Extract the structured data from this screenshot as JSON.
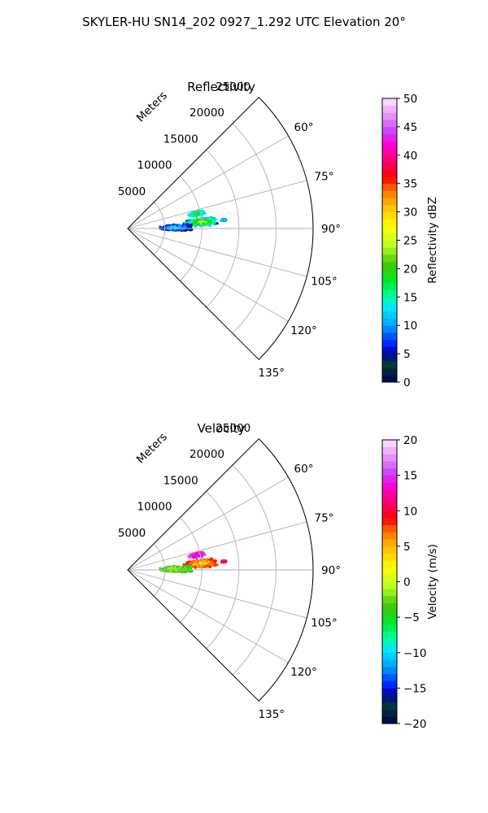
{
  "figure": {
    "title": "SKYLER-HU  SN14_202  0927_1.292 UTC Elevation 20°"
  },
  "chart_data": [
    {
      "type": "heatmap",
      "title": "Reflectivity",
      "radial_label": "Meters",
      "radial_ticks": [
        5000,
        10000,
        15000,
        20000,
        25000
      ],
      "radial_tick_labels": [
        "5000",
        "10000",
        "15000",
        "20000",
        "25000"
      ],
      "r_max": 25000,
      "azimuth_range_deg": [
        45,
        135
      ],
      "azimuth_ticks": [
        60,
        75,
        90,
        105,
        120,
        135
      ],
      "azimuth_tick_labels": [
        "60°",
        "75°",
        "90°",
        "105°",
        "120°",
        "135°"
      ],
      "grid": true,
      "colorbar": {
        "label": "Reflectivity dBZ",
        "vmin": 0,
        "vmax": 50,
        "ticks": [
          0,
          5,
          10,
          15,
          20,
          25,
          30,
          35,
          40,
          45,
          50
        ],
        "tick_labels": [
          "0",
          "5",
          "10",
          "15",
          "20",
          "25",
          "30",
          "35",
          "40",
          "45",
          "50"
        ]
      },
      "echoes": [
        {
          "az": 78,
          "r": 9500,
          "az_spread": 2.5,
          "r_spread": 1200,
          "peak": 20,
          "edge": 12
        },
        {
          "az": 85,
          "r": 10000,
          "az_spread": 3.5,
          "r_spread": 2500,
          "peak": 28,
          "edge": 8
        },
        {
          "az": 89,
          "r": 6500,
          "az_spread": 4.0,
          "r_spread": 2500,
          "peak": 15,
          "edge": 4
        },
        {
          "az": 85,
          "r": 13000,
          "az_spread": 0.8,
          "r_spread": 500,
          "peak": 12,
          "edge": 10
        }
      ]
    },
    {
      "type": "heatmap",
      "title": "Velocity",
      "radial_label": "Meters",
      "radial_ticks": [
        5000,
        10000,
        15000,
        20000,
        25000
      ],
      "radial_tick_labels": [
        "5000",
        "10000",
        "15000",
        "20000",
        "25000"
      ],
      "r_max": 25000,
      "azimuth_range_deg": [
        45,
        135
      ],
      "azimuth_ticks": [
        60,
        75,
        90,
        105,
        120,
        135
      ],
      "azimuth_tick_labels": [
        "60°",
        "75°",
        "90°",
        "105°",
        "120°",
        "135°"
      ],
      "grid": true,
      "colorbar": {
        "label": "Velocity (m/s)",
        "vmin": -20,
        "vmax": 20,
        "ticks": [
          -20,
          -15,
          -10,
          -5,
          0,
          5,
          10,
          15,
          20
        ],
        "tick_labels": [
          "−20",
          "−15",
          "−10",
          "−5",
          "0",
          "5",
          "10",
          "15",
          "20"
        ]
      },
      "echoes": [
        {
          "az": 78,
          "r": 9500,
          "az_spread": 2.5,
          "r_spread": 1200,
          "peak": 12,
          "edge": 16
        },
        {
          "az": 85,
          "r": 10000,
          "az_spread": 3.5,
          "r_spread": 2500,
          "peak": 3,
          "edge": 9
        },
        {
          "az": 89,
          "r": 6500,
          "az_spread": 4.0,
          "r_spread": 2500,
          "peak": -1,
          "edge": -4
        },
        {
          "az": 85,
          "r": 13000,
          "az_spread": 0.8,
          "r_spread": 500,
          "peak": 10,
          "edge": 11
        }
      ]
    }
  ]
}
